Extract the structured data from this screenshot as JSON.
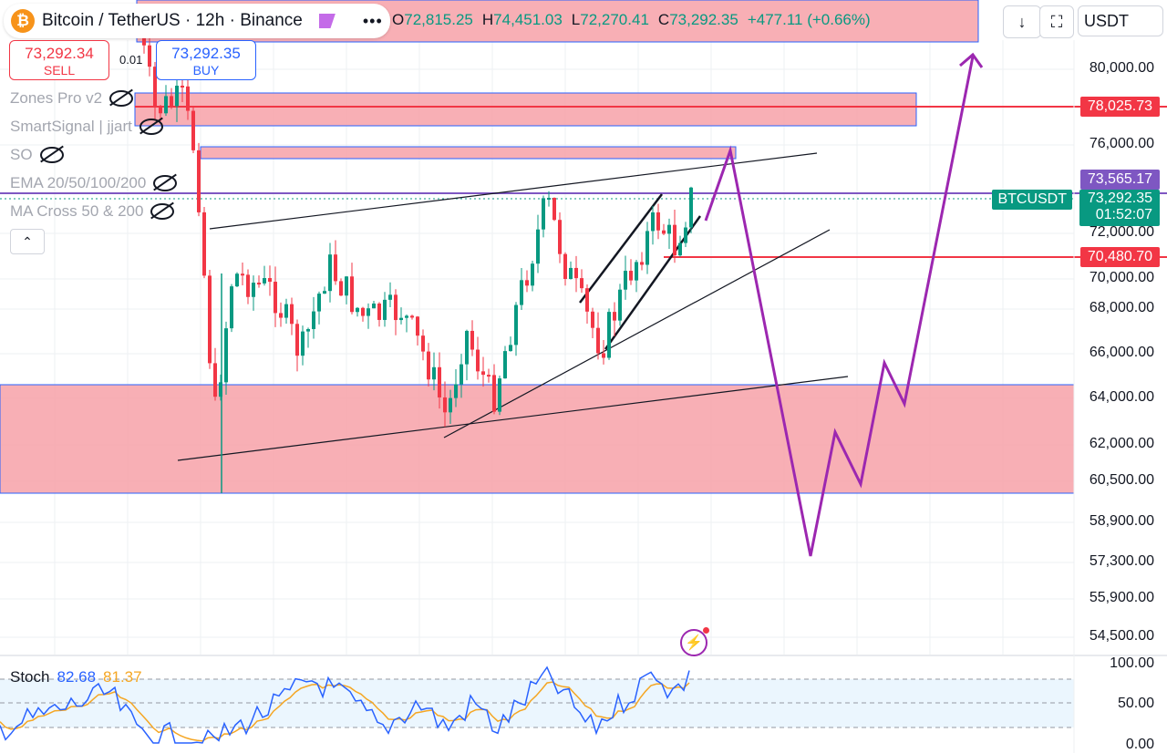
{
  "header": {
    "symbol_title": "Bitcoin / TetherUS · 12h · Binance",
    "ohlc": {
      "o_label": "O",
      "o": "72,815.25",
      "h_label": "H",
      "h": "74,451.03",
      "l_label": "L",
      "l": "72,270.41",
      "c_label": "C",
      "c": "73,292.35",
      "change": "+477.11 (+0.66%)"
    },
    "more_label": "•••",
    "btc_icon": "₿"
  },
  "toolbar": {
    "download_icon": "↓",
    "fullscreen_icon": "⛶",
    "currency": "USDT"
  },
  "trade": {
    "sell_price": "73,292.34",
    "sell_label": "SELL",
    "buy_price": "73,292.35",
    "buy_label": "BUY",
    "spread": "0.01"
  },
  "indicators": [
    {
      "name": "Zones Pro v2"
    },
    {
      "name": "SmartSignal | jjart"
    },
    {
      "name": "SO"
    },
    {
      "name": "EMA 20/50/100/200"
    },
    {
      "name": "MA Cross 50 & 200"
    }
  ],
  "collapse_icon": "⌃",
  "price_axis": {
    "labels": [
      "80,000.00",
      "76,000.00",
      "72,000.00",
      "70,000.00",
      "68,000.00",
      "66,000.00",
      "64,000.00",
      "62,000.00",
      "60,500.00",
      "58,900.00",
      "57,300.00",
      "55,900.00",
      "54,500.00"
    ]
  },
  "price_tags": {
    "zone_top": "78,025.73",
    "high": "73,565.17",
    "symbol": "BTCUSDT",
    "last": "73,292.35",
    "countdown": "01:52:07",
    "support": "70,480.70"
  },
  "stoch": {
    "label": "Stoch",
    "k": "82.68",
    "d": "81.37",
    "axis": [
      "100.00",
      "50.00",
      "0.00"
    ]
  },
  "colors": {
    "up": "#089981",
    "down": "#f23645",
    "zone": "#f7a1a8",
    "projection": "#9c27b0",
    "stoch_k": "#2962ff",
    "stoch_d": "#f5a623",
    "tag_red": "#f23645",
    "tag_purple": "#7e57c2",
    "tag_green": "#089981"
  }
}
